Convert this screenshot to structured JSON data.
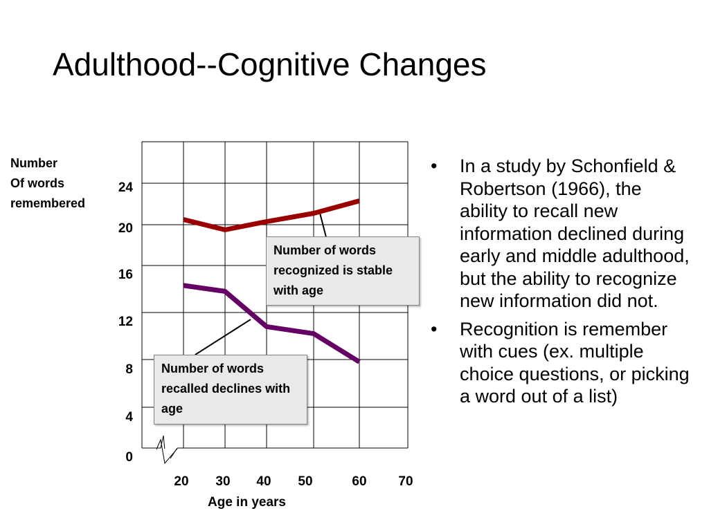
{
  "slide": {
    "title": "Adulthood--Cognitive Changes"
  },
  "bullets": [
    {
      "text": "In a study by Schonfield & Robertson (1966), the ability to recall new information declined during early and middle adulthood, but the ability to recognize new information did not."
    },
    {
      "text": "Recognition is remember with cues (ex. multiple choice questions, or picking a word out of a list)"
    }
  ],
  "bullet_glyph": "•",
  "chart_data": {
    "type": "line",
    "ylabel": [
      "Number",
      "Of words",
      "remembered"
    ],
    "xlabel": "Age in years",
    "x_ticks": [
      "20",
      "30",
      "40",
      "50",
      "60",
      "70"
    ],
    "y_ticks": [
      "0",
      "4",
      "8",
      "12",
      "16",
      "20",
      "24"
    ],
    "grid": true,
    "axis_break": true,
    "series": [
      {
        "key": "recognized",
        "color": "#9b0000",
        "x": [
          20,
          30,
          40,
          50,
          60
        ],
        "y": [
          20.5,
          19.5,
          20.3,
          21.1,
          22.3
        ]
      },
      {
        "key": "recalled",
        "color": "#650065",
        "x": [
          20,
          30,
          40,
          50,
          60
        ],
        "y": [
          14.3,
          13.8,
          10.8,
          10.2,
          7.8
        ]
      }
    ],
    "annotations": [
      {
        "key": "recognized",
        "text": "Number of words recognized is stable with age"
      },
      {
        "key": "recalled",
        "text": "Number of words recalled declines with age"
      }
    ]
  }
}
